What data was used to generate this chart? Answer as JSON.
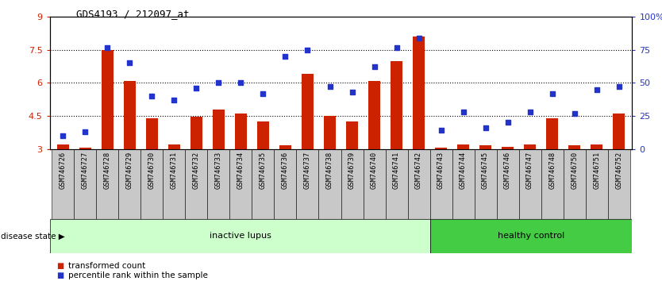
{
  "title": "GDS4193 / 212097_at",
  "samples": [
    "GSM746726",
    "GSM746727",
    "GSM746728",
    "GSM746729",
    "GSM746730",
    "GSM746731",
    "GSM746732",
    "GSM746733",
    "GSM746734",
    "GSM746735",
    "GSM746736",
    "GSM746737",
    "GSM746738",
    "GSM746739",
    "GSM746740",
    "GSM746741",
    "GSM746742",
    "GSM746743",
    "GSM746744",
    "GSM746745",
    "GSM746746",
    "GSM746747",
    "GSM746748",
    "GSM746750",
    "GSM746751",
    "GSM746752"
  ],
  "bar_values": [
    3.2,
    3.05,
    7.5,
    6.1,
    4.4,
    3.2,
    4.45,
    4.8,
    4.6,
    4.25,
    3.15,
    6.4,
    4.5,
    4.25,
    6.1,
    7.0,
    8.1,
    3.05,
    3.2,
    3.15,
    3.1,
    3.2,
    4.4,
    3.15,
    3.2,
    4.6
  ],
  "dot_values": [
    10,
    13,
    77,
    65,
    40,
    37,
    46,
    50,
    50,
    42,
    70,
    75,
    47,
    43,
    62,
    77,
    84,
    14,
    28,
    16,
    20,
    28,
    42,
    27,
    45,
    47
  ],
  "inactive_count": 17,
  "group_labels": [
    "inactive lupus",
    "healthy control"
  ],
  "ylim_left": [
    3,
    9
  ],
  "ylim_right": [
    0,
    100
  ],
  "yticks_left": [
    3,
    4.5,
    6,
    7.5,
    9
  ],
  "ytick_labels_left": [
    "3",
    "4.5",
    "6",
    "7.5",
    "9"
  ],
  "yticks_right": [
    0,
    25,
    50,
    75,
    100
  ],
  "ytick_labels_right": [
    "0",
    "25",
    "50",
    "75",
    "100%"
  ],
  "hlines": [
    4.5,
    6.0,
    7.5
  ],
  "bar_color": "#cc2200",
  "dot_color": "#2233cc",
  "inactive_bg": "#ccffcc",
  "healthy_bg": "#44cc44",
  "xtick_bg": "#c8c8c8",
  "legend_bar_label": "transformed count",
  "legend_dot_label": "percentile rank within the sample",
  "disease_state_label": "disease state"
}
